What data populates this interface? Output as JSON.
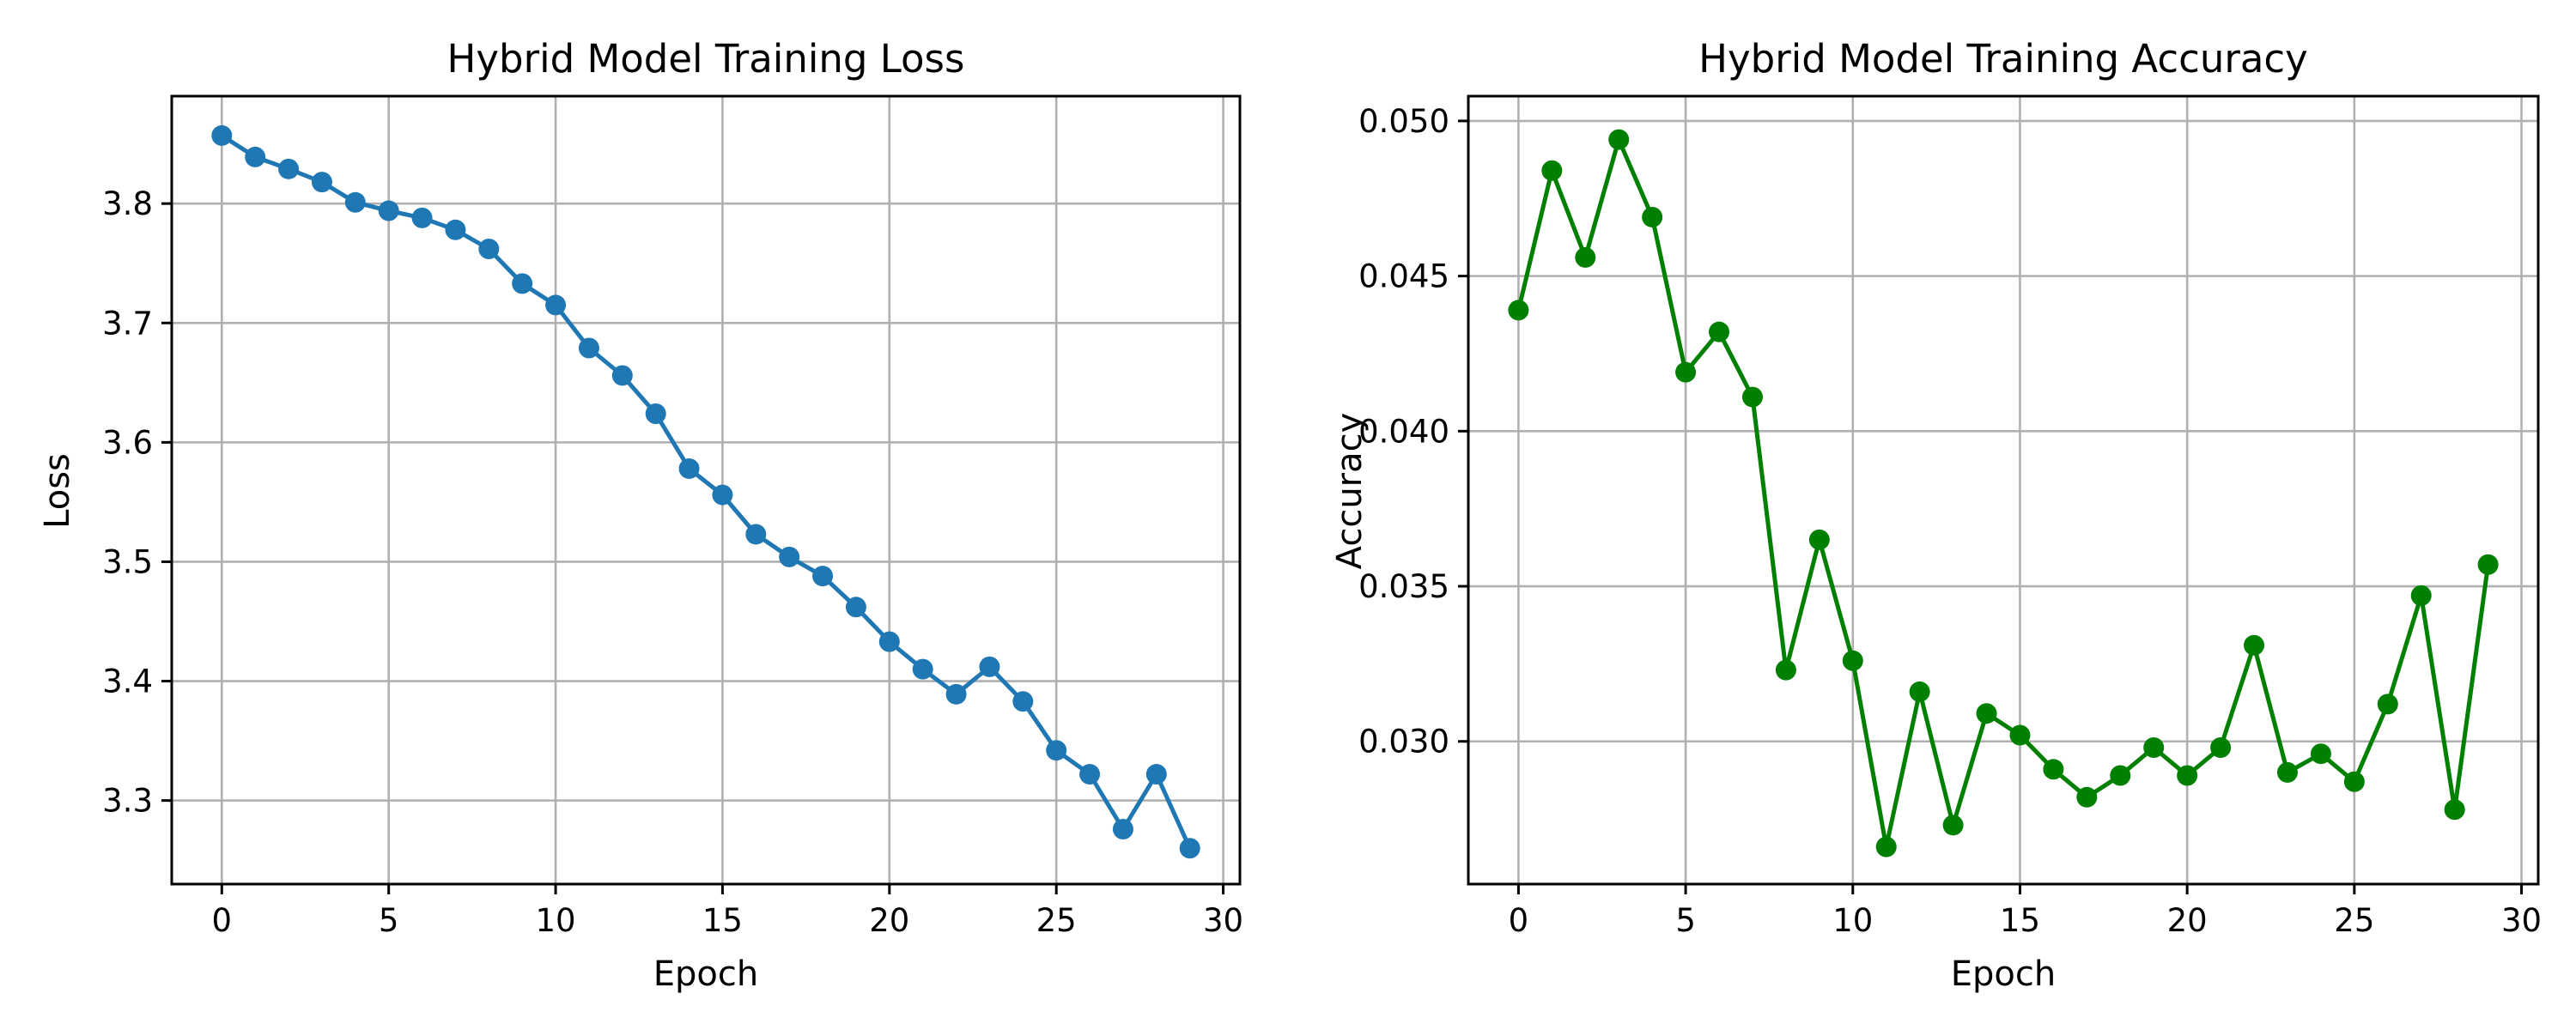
{
  "chart_data": [
    {
      "type": "line",
      "title": "Hybrid Model Training Loss",
      "xlabel": "Epoch",
      "ylabel": "Loss",
      "xlim": [
        -1.5,
        30.5
      ],
      "ylim": [
        3.23,
        3.89
      ],
      "x_ticks": [
        0,
        5,
        10,
        15,
        20,
        25,
        30
      ],
      "y_ticks": [
        3.3,
        3.4,
        3.5,
        3.6,
        3.7,
        3.8
      ],
      "y_tick_labels": [
        "3.3",
        "3.4",
        "3.5",
        "3.6",
        "3.7",
        "3.8"
      ],
      "grid": true,
      "color": "#1f77b4",
      "marker": "circle",
      "x": [
        0,
        1,
        2,
        3,
        4,
        5,
        6,
        7,
        8,
        9,
        10,
        11,
        12,
        13,
        14,
        15,
        16,
        17,
        18,
        19,
        20,
        21,
        22,
        23,
        24,
        25,
        26,
        27,
        28,
        29
      ],
      "y": [
        3.857,
        3.839,
        3.829,
        3.818,
        3.801,
        3.794,
        3.788,
        3.778,
        3.762,
        3.733,
        3.715,
        3.679,
        3.656,
        3.624,
        3.578,
        3.556,
        3.523,
        3.504,
        3.488,
        3.462,
        3.433,
        3.41,
        3.389,
        3.412,
        3.383,
        3.342,
        3.322,
        3.276,
        3.322,
        3.26
      ]
    },
    {
      "type": "line",
      "title": "Hybrid Model Training Accuracy",
      "xlabel": "Epoch",
      "ylabel": "Accuracy",
      "xlim": [
        -1.5,
        30.5
      ],
      "ylim": [
        0.0254,
        0.0508
      ],
      "x_ticks": [
        0,
        5,
        10,
        15,
        20,
        25,
        30
      ],
      "y_ticks": [
        0.03,
        0.035,
        0.04,
        0.045,
        0.05
      ],
      "y_tick_labels": [
        "0.030",
        "0.035",
        "0.040",
        "0.045",
        "0.050"
      ],
      "grid": true,
      "color": "#008000",
      "marker": "circle",
      "x": [
        0,
        1,
        2,
        3,
        4,
        5,
        6,
        7,
        8,
        9,
        10,
        11,
        12,
        13,
        14,
        15,
        16,
        17,
        18,
        19,
        20,
        21,
        22,
        23,
        24,
        25,
        26,
        27,
        28,
        29
      ],
      "y": [
        0.0439,
        0.0484,
        0.0456,
        0.0494,
        0.0469,
        0.0419,
        0.0432,
        0.0411,
        0.0323,
        0.0365,
        0.0326,
        0.0266,
        0.0316,
        0.0273,
        0.0309,
        0.0302,
        0.0291,
        0.0282,
        0.0289,
        0.0298,
        0.0289,
        0.0298,
        0.0331,
        0.029,
        0.0296,
        0.0287,
        0.0312,
        0.0347,
        0.0278,
        0.0357
      ]
    }
  ]
}
